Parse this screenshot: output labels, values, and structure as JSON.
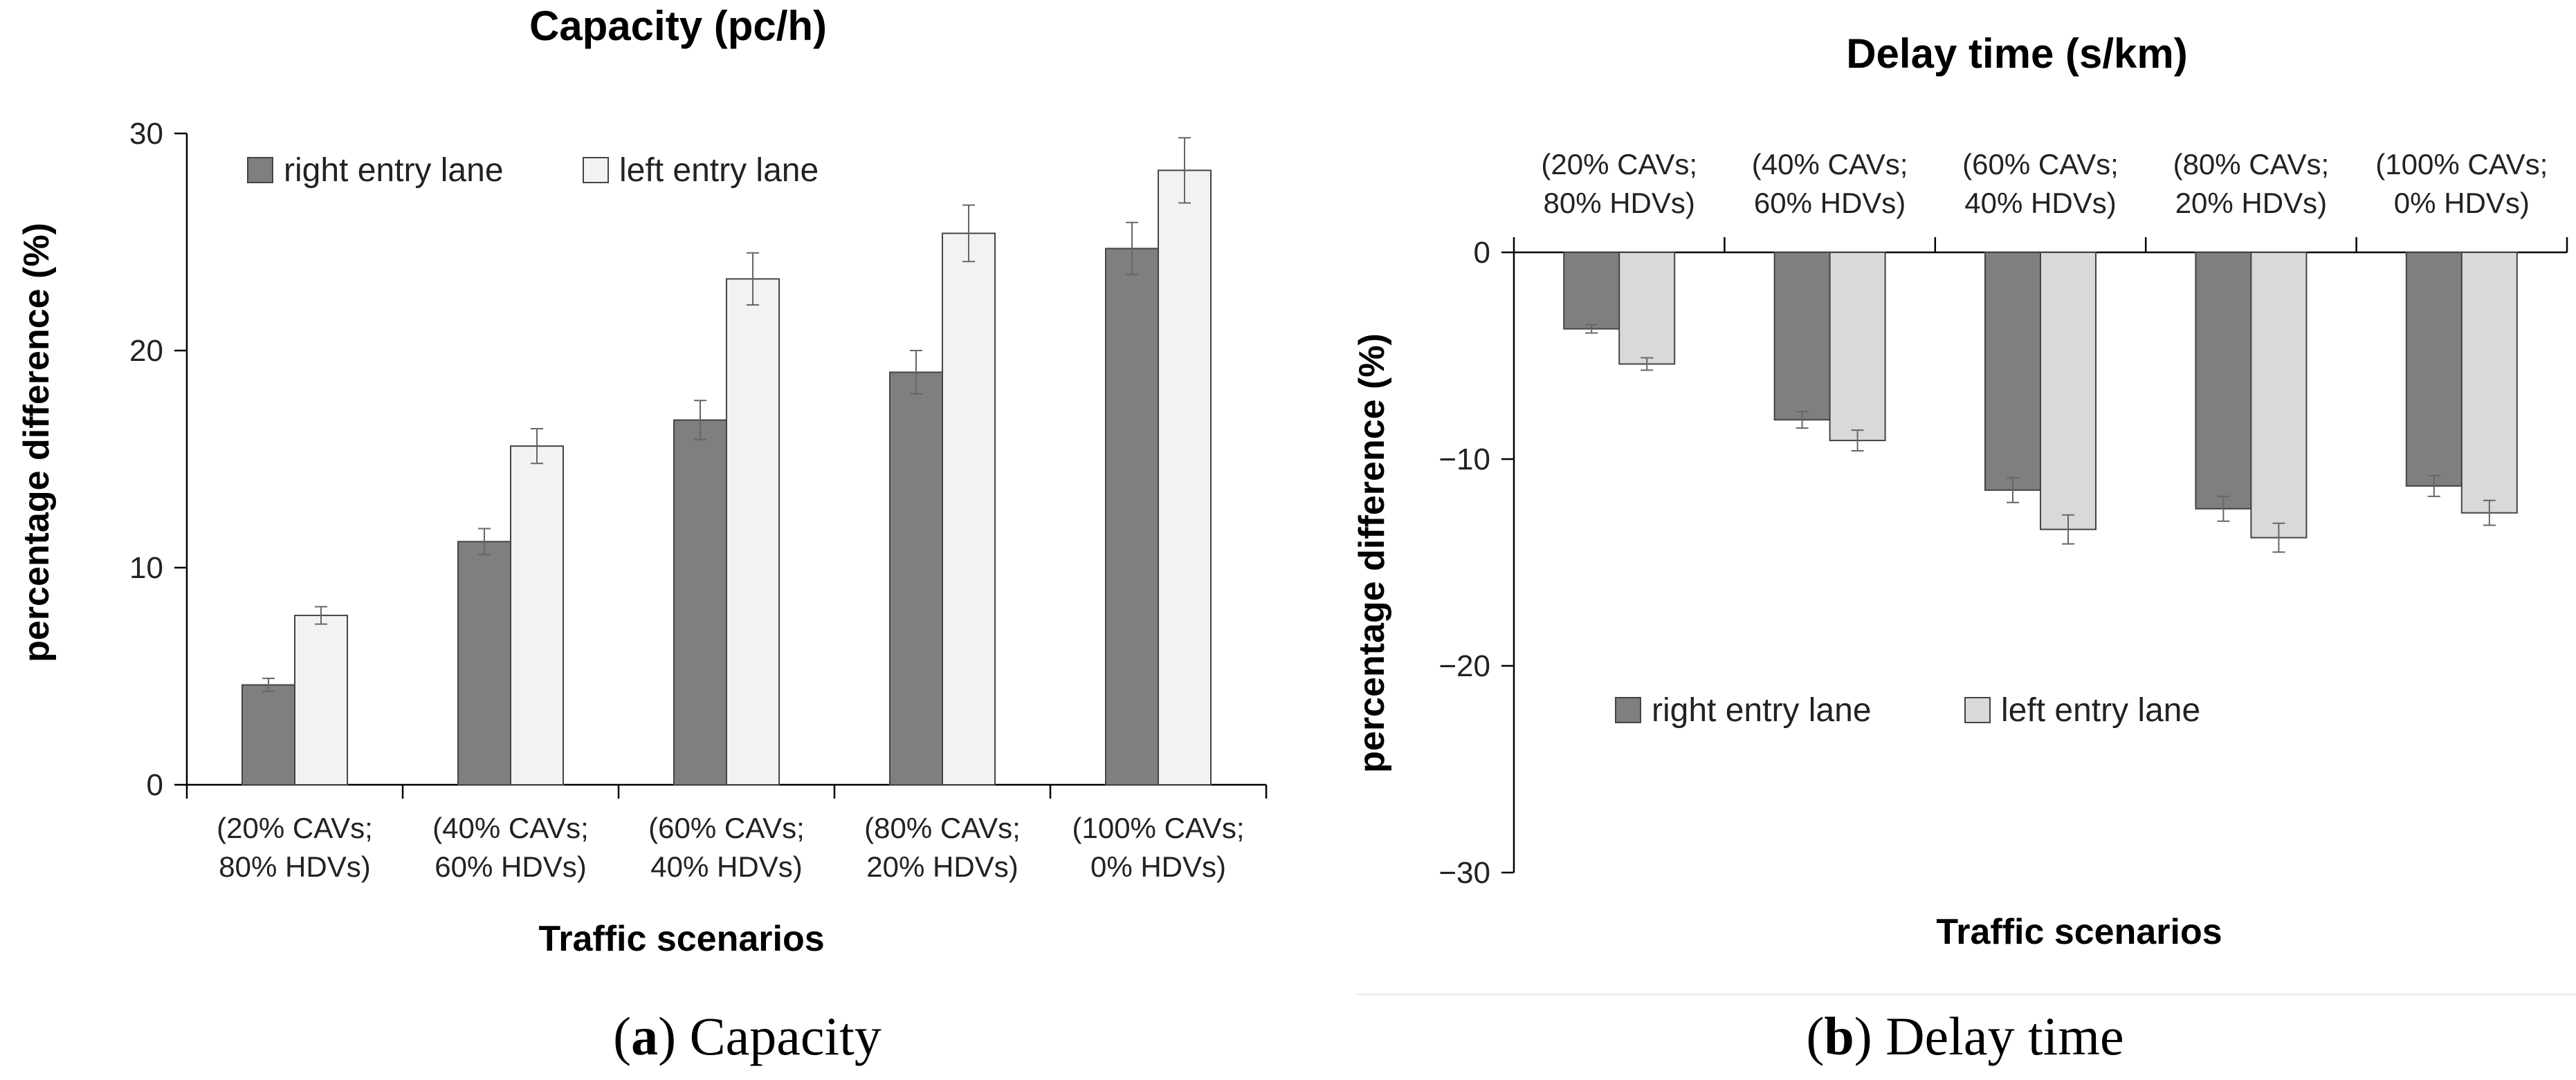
{
  "chart_data": [
    {
      "panel": "a",
      "type": "bar",
      "title": "Capacity (pc/h)",
      "xlabel": "Traffic scenarios",
      "ylabel": "percentage difference (%)",
      "ylim": [
        0,
        30
      ],
      "yticks": [
        0,
        10,
        20,
        30
      ],
      "categories": [
        [
          "(20% CAVs;",
          "80% HDVs)"
        ],
        [
          "(40% CAVs;",
          "60% HDVs)"
        ],
        [
          "(60% CAVs;",
          "40% HDVs)"
        ],
        [
          "(80% CAVs;",
          "20% HDVs)"
        ],
        [
          "(100% CAVs;",
          "0% HDVs)"
        ]
      ],
      "series": [
        {
          "name": "right entry lane",
          "values": [
            4.6,
            11.2,
            16.8,
            19.0,
            24.7
          ],
          "errors": [
            0.3,
            0.6,
            0.9,
            1.0,
            1.2
          ],
          "color": "#7f7f7f"
        },
        {
          "name": "left entry lane",
          "values": [
            7.8,
            15.6,
            23.3,
            25.4,
            28.3
          ],
          "errors": [
            0.4,
            0.8,
            1.2,
            1.3,
            1.5
          ],
          "color": "#f2f2f2"
        }
      ],
      "legend_position": "top-left",
      "grid": false,
      "caption_letter": "a",
      "caption_text": ") Capacity"
    },
    {
      "panel": "b",
      "type": "bar",
      "title": "Delay time (s/km)",
      "xlabel": "Traffic scenarios",
      "ylabel": "percentage difference (%)",
      "ylim": [
        -30,
        0
      ],
      "yticks": [
        0,
        -10,
        -20,
        -30
      ],
      "categories": [
        [
          "(20% CAVs;",
          "80% HDVs)"
        ],
        [
          "(40% CAVs;",
          "60% HDVs)"
        ],
        [
          "(60% CAVs;",
          "40% HDVs)"
        ],
        [
          "(80% CAVs;",
          "20% HDVs)"
        ],
        [
          "(100% CAVs;",
          "0% HDVs)"
        ]
      ],
      "series": [
        {
          "name": "right entry lane",
          "values": [
            -3.7,
            -8.1,
            -11.5,
            -12.4,
            -11.3
          ],
          "errors": [
            0.2,
            0.4,
            0.6,
            0.6,
            0.5
          ],
          "color": "#7f7f7f"
        },
        {
          "name": "left entry lane",
          "values": [
            -5.4,
            -9.1,
            -13.4,
            -13.8,
            -12.6
          ],
          "errors": [
            0.3,
            0.5,
            0.7,
            0.7,
            0.6
          ],
          "color": "#d9d9d9"
        }
      ],
      "legend_position": "center-left",
      "grid": false,
      "caption_letter": "b",
      "caption_text": ") Delay time"
    }
  ]
}
